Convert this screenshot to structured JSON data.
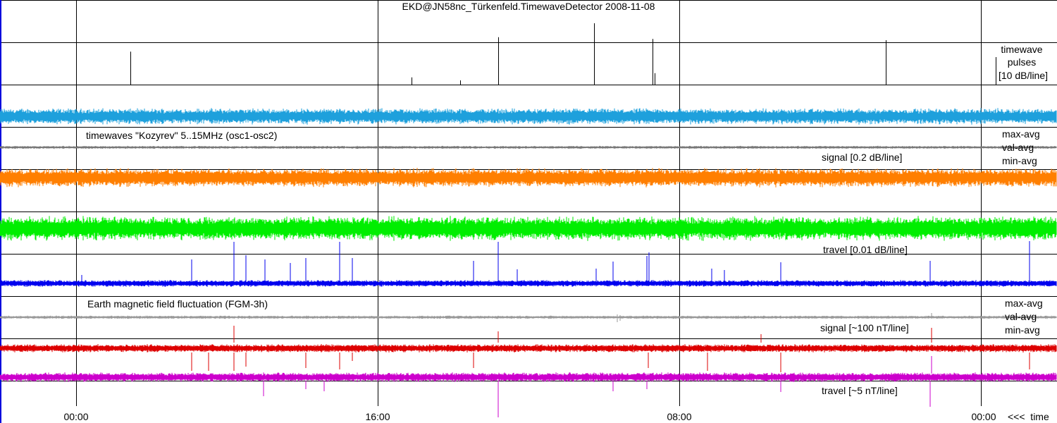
{
  "chart_data": {
    "type": "line",
    "title": "EKD@JN58nc_Türkenfeld.TimewaveDetector  2008-11-08",
    "time_axis": {
      "tick_labels": [
        "00:00",
        "16:00",
        "08:00",
        "00:00"
      ],
      "direction_label": "<<<  time"
    },
    "panels": {
      "pulses": {
        "label_lines": [
          "timewave",
          "pulses",
          "[10 dB/line]"
        ],
        "color": "#000000",
        "pulses": [
          {
            "t": 0.123,
            "h": 0.78
          },
          {
            "t": 0.389,
            "h": 0.17
          },
          {
            "t": 0.435,
            "h": 0.1
          },
          {
            "t": 0.471,
            "h": 1.12
          },
          {
            "t": 0.562,
            "h": 1.45
          },
          {
            "t": 0.617,
            "h": 1.08
          },
          {
            "t": 0.619,
            "h": 0.27
          },
          {
            "t": 0.838,
            "h": 1.05
          },
          {
            "t": 0.942,
            "h": 0.65
          }
        ]
      },
      "kozyrev": {
        "heading": "timewaves \"Kozyrev\"  5..15MHz  (osc1-osc2)",
        "side_labels": [
          "max-avg",
          "val-avg",
          "min-avg"
        ],
        "signal_label": "signal [0.2 dB/line]",
        "travel_label": "travel [0.01 dB/line]",
        "series": [
          {
            "name": "max-avg",
            "color": "#1ea0dc"
          },
          {
            "name": "val-avg",
            "color": "#777777"
          },
          {
            "name": "min-avg",
            "color": "#ff7f00"
          },
          {
            "name": "travel",
            "color": "#00ee00"
          },
          {
            "name": "travel pulses",
            "color": "#0000ee"
          }
        ]
      },
      "magnetic": {
        "heading": "Earth magnetic field fluctuation (FGM-3h)",
        "side_labels": [
          "max-avg",
          "val-avg",
          "min-avg"
        ],
        "signal_label": "signal [~100 nT/line]",
        "travel_label": "travel [~5 nT/line]",
        "series": [
          {
            "name": "val-avg",
            "color": "#999999"
          },
          {
            "name": "signal",
            "color": "#dd0000"
          },
          {
            "name": "travel",
            "color": "#cc00cc"
          }
        ]
      }
    }
  }
}
